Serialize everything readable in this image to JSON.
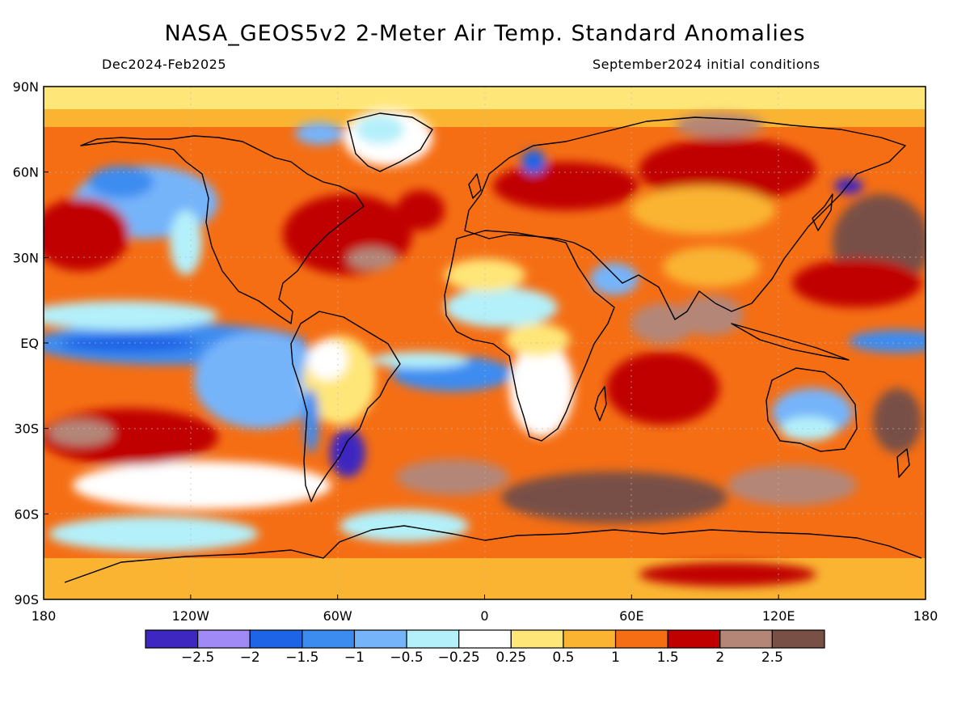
{
  "title": "NASA_GEOS5v2 2-Meter Air Temp. Standard Anomalies",
  "period": "Dec2024-Feb2025",
  "init": "September2024 initial conditions",
  "lat_labels": [
    "90N",
    "60N",
    "30N",
    "EQ",
    "30S",
    "60S",
    "90S"
  ],
  "lat_values": [
    90,
    60,
    30,
    0,
    -30,
    -60,
    -90
  ],
  "lon_labels": [
    "180",
    "120W",
    "60W",
    "0",
    "60E",
    "120E",
    "180"
  ],
  "lon_values": [
    -180,
    -120,
    -60,
    0,
    60,
    120,
    180
  ],
  "colorbar": {
    "colors": [
      "#3d27c0",
      "#a08af6",
      "#1e64e6",
      "#3c8cf0",
      "#76b4fa",
      "#b4f0fa",
      "#ffffff",
      "#ffe678",
      "#fab432",
      "#f56e14",
      "#c00000",
      "#b48678",
      "#785046"
    ],
    "labels": [
      "-2.5",
      "-2",
      "-1.5",
      "-1",
      "-0.5",
      "-0.25",
      "0.25",
      "0.5",
      "1",
      "1.5",
      "2",
      "2.5"
    ]
  },
  "colors": {
    "land_outline": "#000000",
    "background": "#ffffff"
  }
}
